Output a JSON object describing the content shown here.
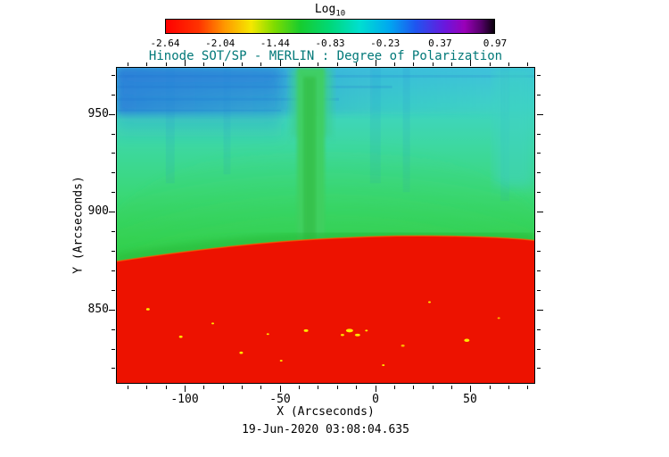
{
  "chart_data": {
    "type": "heatmap",
    "title": "Hinode SOT/SP - MERLIN : Degree of Polarization",
    "xlabel": "X (Arcseconds)",
    "ylabel": "Y (Arcseconds)",
    "caption": "19-Jun-2020 03:08:04.635",
    "x_range": [
      -136,
      84
    ],
    "y_range": [
      812,
      974
    ],
    "x_major_ticks": [
      -100,
      -50,
      0,
      50
    ],
    "y_major_ticks": [
      950,
      900,
      850
    ],
    "minor_tick_step": 10,
    "colorbar": {
      "label_main": "Log",
      "label_sub": "10",
      "tick_labels": [
        "-2.64",
        "-2.04",
        "-1.44",
        "-0.83",
        "-0.23",
        "0.37",
        "0.97"
      ],
      "gradient_stops": [
        [
          "#ff0000",
          0
        ],
        [
          "#ff3300",
          10
        ],
        [
          "#ff9900",
          18
        ],
        [
          "#f5e800",
          26
        ],
        [
          "#7fdc00",
          33
        ],
        [
          "#17cc2e",
          41
        ],
        [
          "#00d878",
          50
        ],
        [
          "#00dfd0",
          59
        ],
        [
          "#00a8f0",
          68
        ],
        [
          "#1e56f0",
          76
        ],
        [
          "#6a17dd",
          85
        ],
        [
          "#9a00b8",
          91
        ],
        [
          "#55006a",
          96
        ],
        [
          "#0a000c",
          100
        ]
      ]
    },
    "colors": {
      "title": "#007878",
      "axis": "#000000",
      "disk_red": "#ed1200",
      "corona_green": "#33d14e",
      "sky_cyan": "#3fd2c8",
      "patch_blue": "#2b7ed8",
      "bright_point_yellow": "#ffe600"
    },
    "features": [
      "red solar disk (lowest log10 polarization) below curved limb near y=885 arcsec",
      "green to cyan gradient above the limb",
      "blue patch in upper-left corner",
      "vertical green plume near x=-30 arcsec rising from the limb to image top",
      "small yellow bright points scattered on the red disk"
    ]
  }
}
